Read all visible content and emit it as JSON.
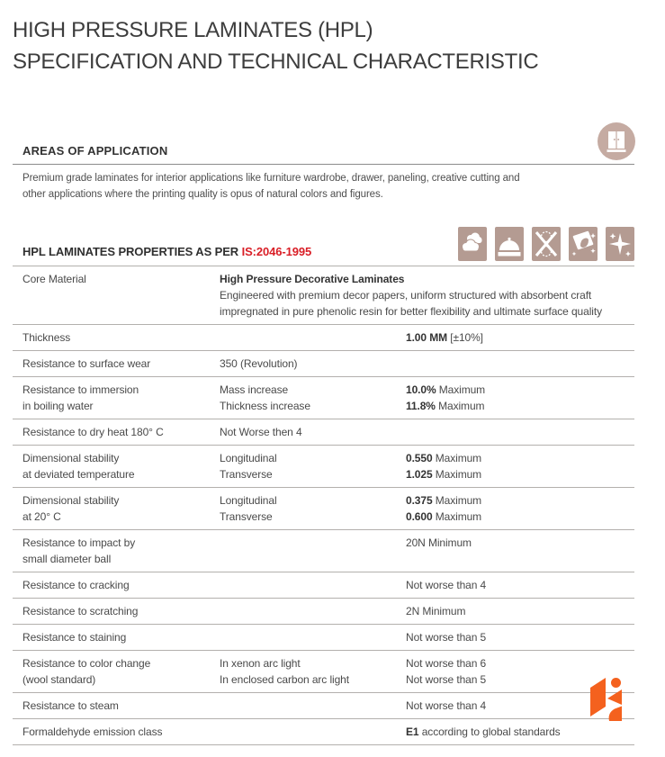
{
  "title": {
    "line1": "HIGH PRESSURE LAMINATES (HPL)",
    "line2": "SPECIFICATION AND TECHNICAL CHARACTERISTIC"
  },
  "areas": {
    "heading": "AREAS OF APPLICATION",
    "body_line1": "Premium grade laminates for interior applications like furniture wardrobe, drawer, paneling, creative cutting and",
    "body_line2": "other applications where the printing quality is opus of natural colors and figures."
  },
  "properties": {
    "heading_prefix": "HPL LAMINATES PROPERTIES AS PER ",
    "heading_standard": "IS:2046-1995"
  },
  "icons": {
    "application_badge": "wardrobe-icon",
    "features": [
      "clouds-icon",
      "dome-abrasion-icon",
      "termite-proof-icon",
      "wipe-clean-icon",
      "shine-sparkle-icon"
    ]
  },
  "colors": {
    "accent_red": "#d91e26",
    "icon_tan": "#b49b92",
    "badge_tan": "#c5aba2",
    "logo_orange": "#f4611e",
    "line_gray": "#b3b0ad"
  },
  "table": {
    "rows": [
      {
        "wide": true,
        "label": [
          [
            {
              "t": "Core Material"
            }
          ]
        ],
        "mid": [
          [
            {
              "t": "High Pressure Decorative Laminates",
              "b": true
            }
          ],
          [
            {
              "t": "Engineered with premium decor papers, uniform structured with absorbent craft"
            }
          ],
          [
            {
              "t": "impregnated in pure phenolic resin for better flexibility and ultimate surface quality"
            }
          ]
        ],
        "value": []
      },
      {
        "label": [
          [
            {
              "t": "Thickness"
            }
          ]
        ],
        "mid": [],
        "value": [
          [
            {
              "t": "1.00 MM",
              "b": true
            },
            {
              "t": "  [±10%]"
            }
          ]
        ]
      },
      {
        "label": [
          [
            {
              "t": "Resistance to surface wear"
            }
          ]
        ],
        "mid": [
          [
            {
              "t": "350 (Revolution)"
            }
          ]
        ],
        "value": []
      },
      {
        "label": [
          [
            {
              "t": "Resistance to immersion"
            }
          ],
          [
            {
              "t": "in boiling water"
            }
          ]
        ],
        "mid": [
          [
            {
              "t": "Mass increase"
            }
          ],
          [
            {
              "t": "Thickness increase"
            }
          ]
        ],
        "value": [
          [
            {
              "t": "10.0%",
              "b": true
            },
            {
              "t": " Maximum"
            }
          ],
          [
            {
              "t": "11.8%",
              "b": true
            },
            {
              "t": " Maximum"
            }
          ]
        ]
      },
      {
        "label": [
          [
            {
              "t": "Resistance to dry heat 180° C"
            }
          ]
        ],
        "mid": [
          [
            {
              "t": "Not Worse then 4"
            }
          ]
        ],
        "value": []
      },
      {
        "label": [
          [
            {
              "t": "Dimensional stability"
            }
          ],
          [
            {
              "t": "at deviated temperature"
            }
          ]
        ],
        "mid": [
          [
            {
              "t": "Longitudinal"
            }
          ],
          [
            {
              "t": "Transverse"
            }
          ]
        ],
        "value": [
          [
            {
              "t": "0.550",
              "b": true
            },
            {
              "t": " Maximum"
            }
          ],
          [
            {
              "t": "1.025",
              "b": true
            },
            {
              "t": " Maximum"
            }
          ]
        ]
      },
      {
        "label": [
          [
            {
              "t": "Dimensional stability"
            }
          ],
          [
            {
              "t": "at 20° C"
            }
          ]
        ],
        "mid": [
          [
            {
              "t": "Longitudinal"
            }
          ],
          [
            {
              "t": "Transverse"
            }
          ]
        ],
        "value": [
          [
            {
              "t": "0.375",
              "b": true
            },
            {
              "t": " Maximum"
            }
          ],
          [
            {
              "t": "0.600",
              "b": true
            },
            {
              "t": " Maximum"
            }
          ]
        ]
      },
      {
        "label": [
          [
            {
              "t": "Resistance to impact by"
            }
          ],
          [
            {
              "t": "small diameter ball"
            }
          ]
        ],
        "mid": [],
        "value": [
          [
            {
              "t": "20N Minimum"
            }
          ]
        ]
      },
      {
        "label": [
          [
            {
              "t": "Resistance to cracking"
            }
          ]
        ],
        "mid": [],
        "value": [
          [
            {
              "t": "Not worse than 4"
            }
          ]
        ]
      },
      {
        "label": [
          [
            {
              "t": "Resistance to scratching"
            }
          ]
        ],
        "mid": [],
        "value": [
          [
            {
              "t": "2N Minimum"
            }
          ]
        ]
      },
      {
        "label": [
          [
            {
              "t": "Resistance to staining"
            }
          ]
        ],
        "mid": [],
        "value": [
          [
            {
              "t": "Not worse than 5"
            }
          ]
        ]
      },
      {
        "label": [
          [
            {
              "t": "Resistance to color change"
            }
          ],
          [
            {
              "t": "(wool standard)"
            }
          ]
        ],
        "mid": [
          [
            {
              "t": "In xenon arc light"
            }
          ],
          [
            {
              "t": "In enclosed carbon arc light"
            }
          ]
        ],
        "value": [
          [
            {
              "t": "Not worse than 6"
            }
          ],
          [
            {
              "t": "Not worse than 5"
            }
          ]
        ]
      },
      {
        "label": [
          [
            {
              "t": "Resistance to steam"
            }
          ]
        ],
        "mid": [],
        "value": [
          [
            {
              "t": "Not worse than 4"
            }
          ]
        ]
      },
      {
        "label": [
          [
            {
              "t": "Formaldehyde emission class"
            }
          ]
        ],
        "mid": [],
        "value": [
          [
            {
              "t": "E1",
              "b": true
            },
            {
              "t": "  according to global standards"
            }
          ]
        ]
      }
    ]
  }
}
